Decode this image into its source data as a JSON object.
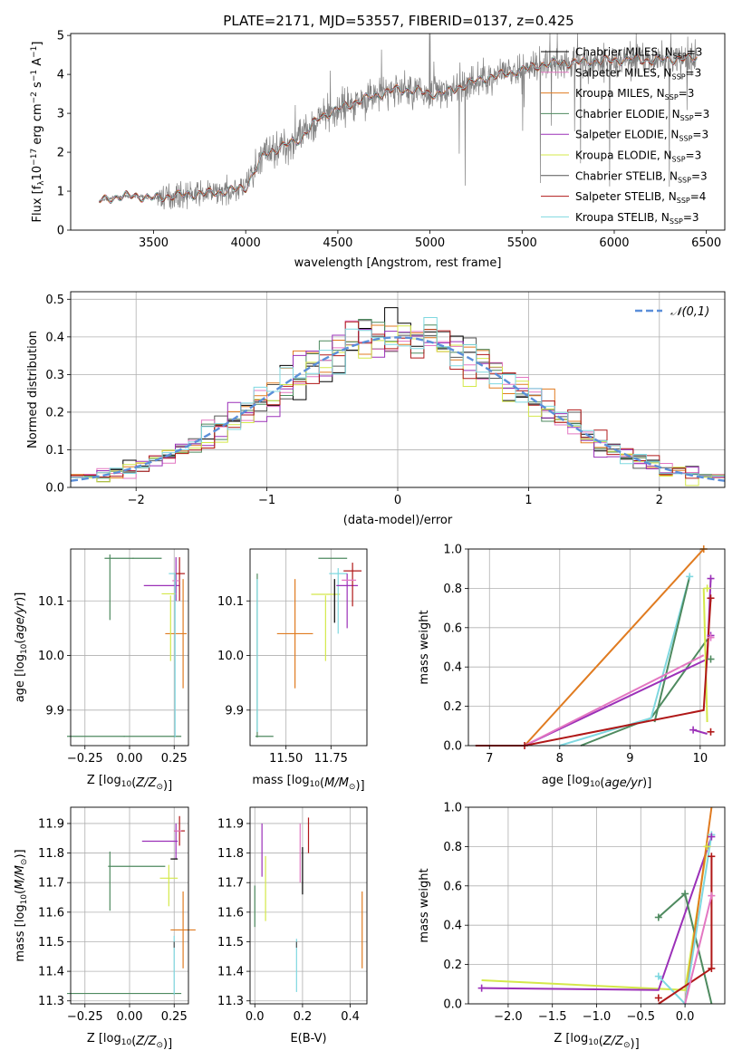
{
  "figure": {
    "title": "PLATE=2171, MJD=53557, FIBERID=0137, z=0.425"
  },
  "series": [
    {
      "name": "Chabrier MILES, N_SSP=3",
      "base": "Chabrier MILES, N",
      "sub": "SSP",
      "suf": "=3",
      "color": "#000000"
    },
    {
      "name": "Salpeter MILES, N_SSP=3",
      "base": "Salpeter MILES, N",
      "sub": "SSP",
      "suf": "=3",
      "color": "#e377c2"
    },
    {
      "name": "Kroupa MILES, N_SSP=3",
      "base": "Kroupa MILES, N",
      "sub": "SSP",
      "suf": "=3",
      "color": "#e07b20"
    },
    {
      "name": "Chabrier ELODIE, N_SSP=3",
      "base": "Chabrier ELODIE, N",
      "sub": "SSP",
      "suf": "=3",
      "color": "#4e8a5f"
    },
    {
      "name": "Salpeter ELODIE, N_SSP=3",
      "base": "Salpeter ELODIE, N",
      "sub": "SSP",
      "suf": "=3",
      "color": "#9b30b8"
    },
    {
      "name": "Kroupa ELODIE, N_SSP=3",
      "base": "Kroupa ELODIE, N",
      "sub": "SSP",
      "suf": "=3",
      "color": "#d4e84a"
    },
    {
      "name": "Chabrier STELIB, N_SSP=3",
      "base": "Chabrier STELIB, N",
      "sub": "SSP",
      "suf": "=3",
      "color": "#555555"
    },
    {
      "name": "Salpeter STELIB, N_SSP=4",
      "base": "Salpeter STELIB, N",
      "sub": "SSP",
      "suf": "=4",
      "color": "#b01818"
    },
    {
      "name": "Kroupa STELIB, N_SSP=3",
      "base": "Kroupa STELIB, N",
      "sub": "SSP",
      "suf": "=3",
      "color": "#7fd8e0"
    }
  ],
  "chart_data": [
    {
      "id": "spectrum",
      "type": "line",
      "xlabel": "wavelength [Angstrom, rest frame]",
      "ylabel": "Flux [f_λ 10^-17 erg cm^-2 s^-1 A^-1]",
      "xlim": [
        3050,
        6600
      ],
      "ylim": [
        0,
        5.05
      ],
      "xticks": [
        3500,
        4000,
        4500,
        5000,
        5500,
        6000,
        6500
      ],
      "yticks": [
        0,
        1,
        2,
        3,
        4,
        5
      ],
      "data_series_color": "#808080",
      "continuum": {
        "x": [
          3205,
          3300,
          3400,
          3500,
          3600,
          3700,
          3800,
          3900,
          4000,
          4100,
          4200,
          4300,
          4400,
          4500,
          4600,
          4700,
          4800,
          4900,
          5000,
          5100,
          5200,
          5300,
          5400,
          5500,
          5600,
          5700,
          5800,
          5900,
          6000,
          6100,
          6200,
          6300,
          6400,
          6450
        ],
        "y": [
          0.75,
          0.85,
          0.88,
          0.82,
          0.88,
          0.92,
          0.95,
          1.0,
          1.1,
          1.95,
          2.15,
          2.35,
          2.9,
          3.1,
          3.3,
          3.45,
          3.6,
          3.6,
          3.5,
          3.55,
          3.75,
          3.9,
          4.0,
          4.1,
          4.25,
          4.3,
          4.3,
          4.35,
          4.35,
          4.4,
          4.35,
          4.4,
          4.4,
          4.45
        ]
      },
      "grid": false,
      "legend": "upper right"
    },
    {
      "id": "residual_hist",
      "type": "bar",
      "xlabel": "(data-model)/error",
      "ylabel": "Normed distribution",
      "xlim": [
        -2.5,
        2.5
      ],
      "ylim": [
        0,
        0.52
      ],
      "xticks": [
        -2,
        -1,
        0,
        1,
        2
      ],
      "yticks": [
        0.0,
        0.1,
        0.2,
        0.3,
        0.4,
        0.5
      ],
      "reference": {
        "name": "𝒩(0,1)",
        "color": "#5b8fd9"
      },
      "grid": true,
      "legend": "upper right"
    },
    {
      "id": "age_vs_Z",
      "type": "scatter",
      "xlabel": "Z [log10(Z/Z⊙)]",
      "ylabel": "age [log10(age/yr)]",
      "xlim": [
        -0.33,
        0.33
      ],
      "ylim": [
        9.835,
        10.195
      ],
      "xticks": [
        -0.25,
        0.0,
        0.25
      ],
      "yticks": [
        9.9,
        10.0,
        10.1
      ],
      "points": [
        {
          "s": 3,
          "x": -0.03,
          "xerr": 0.32,
          "y": 9.852,
          "yerr": 0.001
        },
        {
          "s": 3,
          "x": 0.02,
          "xerr": 0.16,
          "y": 10.178,
          "yerr": 0.001
        },
        {
          "s": 3,
          "x": -0.11,
          "xerr": 0.0,
          "y": 10.125,
          "yerr": 0.06
        },
        {
          "s": 2,
          "x": 0.26,
          "xerr": 0.06,
          "y": 10.04,
          "yerr": 0.0
        },
        {
          "s": 2,
          "x": 0.3,
          "xerr": 0.0,
          "y": 10.04,
          "yerr": 0.1
        },
        {
          "s": 4,
          "x": 0.18,
          "xerr": 0.1,
          "y": 10.128,
          "yerr": 0.0
        },
        {
          "s": 4,
          "x": 0.26,
          "xerr": 0.0,
          "y": 10.14,
          "yerr": 0.04
        },
        {
          "s": 5,
          "x": 0.22,
          "xerr": 0.04,
          "y": 10.113,
          "yerr": 0.0
        },
        {
          "s": 5,
          "x": 0.23,
          "xerr": 0.0,
          "y": 10.05,
          "yerr": 0.06
        },
        {
          "s": 7,
          "x": 0.28,
          "xerr": 0.03,
          "y": 10.15,
          "yerr": 0.0
        },
        {
          "s": 7,
          "x": 0.28,
          "xerr": 0.0,
          "y": 10.14,
          "yerr": 0.04
        },
        {
          "s": 1,
          "x": 0.26,
          "xerr": 0.02,
          "y": 10.137,
          "yerr": 0.0
        },
        {
          "s": 8,
          "x": 0.255,
          "xerr": 0.0,
          "y": 10.0,
          "yerr": 0.15
        },
        {
          "s": 8,
          "x": 0.24,
          "xerr": 0.02,
          "y": 10.15,
          "yerr": 0.0
        }
      ],
      "grid": true
    },
    {
      "id": "age_vs_mass",
      "type": "scatter",
      "xlabel": "mass [log10(M/M⊙)]",
      "ylabel": "",
      "xlim": [
        11.3,
        11.95
      ],
      "ylim": [
        9.835,
        10.195
      ],
      "xticks": [
        11.5,
        11.75
      ],
      "yticks": [
        9.9,
        10.0,
        10.1
      ],
      "points": [
        {
          "s": 3,
          "x": 11.34,
          "xerr": 0.0,
          "y": 10.0,
          "yerr": 0.15
        },
        {
          "s": 3,
          "x": 11.38,
          "xerr": 0.05,
          "y": 9.852,
          "yerr": 0.0
        },
        {
          "s": 8,
          "x": 11.34,
          "xerr": 0.0,
          "y": 10.0,
          "yerr": 0.14
        },
        {
          "s": 2,
          "x": 11.55,
          "xerr": 0.1,
          "y": 10.04,
          "yerr": 0.0
        },
        {
          "s": 2,
          "x": 11.55,
          "xerr": 0.0,
          "y": 10.04,
          "yerr": 0.1
        },
        {
          "s": 3,
          "x": 11.76,
          "xerr": 0.08,
          "y": 10.178,
          "yerr": 0.0
        },
        {
          "s": 5,
          "x": 11.72,
          "xerr": 0.08,
          "y": 10.112,
          "yerr": 0.0
        },
        {
          "s": 5,
          "x": 11.72,
          "xerr": 0.0,
          "y": 10.05,
          "yerr": 0.06
        },
        {
          "s": 0,
          "x": 11.77,
          "xerr": 0.0,
          "y": 10.1,
          "yerr": 0.04
        },
        {
          "s": 8,
          "x": 11.79,
          "xerr": 0.05,
          "y": 10.15,
          "yerr": 0.0
        },
        {
          "s": 8,
          "x": 11.79,
          "xerr": 0.0,
          "y": 10.1,
          "yerr": 0.06
        },
        {
          "s": 4,
          "x": 11.84,
          "xerr": 0.06,
          "y": 10.128,
          "yerr": 0.0
        },
        {
          "s": 4,
          "x": 11.84,
          "xerr": 0.0,
          "y": 10.1,
          "yerr": 0.05
        },
        {
          "s": 7,
          "x": 11.87,
          "xerr": 0.05,
          "y": 10.155,
          "yerr": 0.0
        },
        {
          "s": 7,
          "x": 11.87,
          "xerr": 0.0,
          "y": 10.13,
          "yerr": 0.04
        },
        {
          "s": 1,
          "x": 11.85,
          "xerr": 0.04,
          "y": 10.138,
          "yerr": 0.0
        }
      ],
      "grid": true
    },
    {
      "id": "mass_weight_vs_age",
      "type": "line",
      "xlabel": "age [log10(age/yr)]",
      "ylabel": "mass weight",
      "xlim": [
        6.7,
        10.35
      ],
      "ylim": [
        0,
        1
      ],
      "xticks": [
        7,
        8,
        9,
        10
      ],
      "yticks": [
        0.0,
        0.2,
        0.4,
        0.6,
        0.8,
        1.0
      ],
      "lines": [
        {
          "s": 2,
          "x": [
            7.5,
            10.05
          ],
          "y": [
            0.0,
            1.0
          ]
        },
        {
          "s": 3,
          "x": [
            8.3,
            9.3,
            10.1
          ],
          "y": [
            0.0,
            0.14,
            0.54
          ]
        },
        {
          "s": 8,
          "x": [
            8.0,
            9.3,
            9.85
          ],
          "y": [
            0.0,
            0.14,
            0.86
          ]
        },
        {
          "s": 3,
          "x": [
            9.35,
            9.85
          ],
          "y": [
            0.12,
            0.86
          ]
        },
        {
          "s": 4,
          "x": [
            7.5,
            10.1,
            10.15
          ],
          "y": [
            0.0,
            0.44,
            0.85
          ]
        },
        {
          "s": 1,
          "x": [
            7.5,
            10.05
          ],
          "y": [
            0.0,
            0.46
          ]
        },
        {
          "s": 5,
          "x": [
            10.05,
            10.1
          ],
          "y": [
            0.8,
            0.12
          ]
        },
        {
          "s": 7,
          "x": [
            6.8,
            7.5,
            10.05,
            10.15
          ],
          "y": [
            0.0,
            0.0,
            0.18,
            0.75
          ]
        },
        {
          "s": 4,
          "x": [
            9.9,
            10.1
          ],
          "y": [
            0.08,
            0.06
          ]
        }
      ],
      "markers": [
        {
          "s": 2,
          "x": 10.05,
          "y": 1.0
        },
        {
          "s": 8,
          "x": 9.85,
          "y": 0.86
        },
        {
          "s": 4,
          "x": 10.15,
          "y": 0.85
        },
        {
          "s": 5,
          "x": 10.1,
          "y": 0.8
        },
        {
          "s": 7,
          "x": 10.15,
          "y": 0.75
        },
        {
          "s": 4,
          "x": 10.15,
          "y": 0.56
        },
        {
          "s": 1,
          "x": 10.15,
          "y": 0.55
        },
        {
          "s": 3,
          "x": 10.15,
          "y": 0.44
        },
        {
          "s": 7,
          "x": 10.15,
          "y": 0.07
        },
        {
          "s": 4,
          "x": 9.9,
          "y": 0.08
        },
        {
          "s": 7,
          "x": 7.5,
          "y": 0.0
        }
      ],
      "grid": true
    },
    {
      "id": "mass_vs_Z",
      "type": "scatter",
      "xlabel": "Z [log10(Z/Z⊙)]",
      "ylabel": "mass [log10(M/M⊙)]",
      "xlim": [
        -0.33,
        0.33
      ],
      "ylim": [
        11.29,
        11.955
      ],
      "xticks": [
        -0.25,
        0.0,
        0.25
      ],
      "yticks": [
        11.3,
        11.4,
        11.5,
        11.6,
        11.7,
        11.8,
        11.9
      ],
      "points": [
        {
          "s": 3,
          "x": -0.03,
          "xerr": 0.32,
          "y": 11.325,
          "yerr": 0.0
        },
        {
          "s": 8,
          "x": 0.25,
          "xerr": 0.0,
          "y": 11.42,
          "yerr": 0.1
        },
        {
          "s": 6,
          "x": 0.25,
          "xerr": 0.0,
          "y": 11.49,
          "yerr": 0.01
        },
        {
          "s": 3,
          "x": -0.11,
          "xerr": 0.0,
          "y": 11.705,
          "yerr": 0.1
        },
        {
          "s": 3,
          "x": 0.04,
          "xerr": 0.16,
          "y": 11.755,
          "yerr": 0.0
        },
        {
          "s": 2,
          "x": 0.3,
          "xerr": 0.07,
          "y": 11.54,
          "yerr": 0.13
        },
        {
          "s": 5,
          "x": 0.22,
          "xerr": 0.05,
          "y": 11.715,
          "yerr": 0.0
        },
        {
          "s": 5,
          "x": 0.22,
          "xerr": 0.0,
          "y": 11.69,
          "yerr": 0.07
        },
        {
          "s": 4,
          "x": 0.17,
          "xerr": 0.1,
          "y": 11.84,
          "yerr": 0.0
        },
        {
          "s": 4,
          "x": 0.26,
          "xerr": 0.0,
          "y": 11.84,
          "yerr": 0.06
        },
        {
          "s": 7,
          "x": 0.28,
          "xerr": 0.03,
          "y": 11.875,
          "yerr": 0.0
        },
        {
          "s": 7,
          "x": 0.28,
          "xerr": 0.0,
          "y": 11.875,
          "yerr": 0.05
        },
        {
          "s": 1,
          "x": 0.27,
          "xerr": 0.02,
          "y": 11.875,
          "yerr": 0.0
        },
        {
          "s": 0,
          "x": 0.25,
          "xerr": 0.02,
          "y": 11.78,
          "yerr": 0.0
        }
      ],
      "grid": true
    },
    {
      "id": "mass_vs_EBV",
      "type": "scatter",
      "xlabel": "E(B-V)",
      "ylabel": "",
      "xlim": [
        -0.02,
        0.47
      ],
      "ylim": [
        11.29,
        11.955
      ],
      "xticks": [
        0.0,
        0.2,
        0.4
      ],
      "yticks": [
        11.3,
        11.4,
        11.5,
        11.6,
        11.7,
        11.8,
        11.9
      ],
      "points": [
        {
          "s": 3,
          "x": 0.0,
          "xerr": 0.0,
          "y": 11.62,
          "yerr": 0.07
        },
        {
          "s": 4,
          "x": 0.03,
          "xerr": 0.0,
          "y": 11.81,
          "yerr": 0.09
        },
        {
          "s": 5,
          "x": 0.045,
          "xerr": 0.0,
          "y": 11.68,
          "yerr": 0.11
        },
        {
          "s": 8,
          "x": 0.175,
          "xerr": 0.0,
          "y": 11.42,
          "yerr": 0.09
        },
        {
          "s": 6,
          "x": 0.175,
          "xerr": 0.0,
          "y": 11.49,
          "yerr": 0.01
        },
        {
          "s": 1,
          "x": 0.19,
          "xerr": 0.0,
          "y": 11.8,
          "yerr": 0.1
        },
        {
          "s": 0,
          "x": 0.2,
          "xerr": 0.0,
          "y": 11.74,
          "yerr": 0.08
        },
        {
          "s": 7,
          "x": 0.225,
          "xerr": 0.0,
          "y": 11.86,
          "yerr": 0.06
        },
        {
          "s": 2,
          "x": 0.45,
          "xerr": 0.0,
          "y": 11.54,
          "yerr": 0.13
        }
      ],
      "grid": true
    },
    {
      "id": "mass_weight_vs_Z",
      "type": "line",
      "xlabel": "Z [log10(Z/Z⊙)]",
      "ylabel": "mass weight",
      "xlim": [
        -2.45,
        0.45
      ],
      "ylim": [
        0,
        1
      ],
      "xticks": [
        -2.0,
        -1.5,
        -1.0,
        -0.5,
        0.0
      ],
      "yticks": [
        0.0,
        0.2,
        0.4,
        0.6,
        0.8,
        1.0
      ],
      "lines": [
        {
          "s": 5,
          "x": [
            -2.3,
            0.0,
            0.25
          ],
          "y": [
            0.12,
            0.07,
            0.8
          ]
        },
        {
          "s": 4,
          "x": [
            -2.3,
            -0.3,
            0.3
          ],
          "y": [
            0.08,
            0.07,
            0.85
          ]
        },
        {
          "s": 3,
          "x": [
            -0.3,
            0.0,
            0.3
          ],
          "y": [
            0.44,
            0.56,
            0.0
          ]
        },
        {
          "s": 2,
          "x": [
            0.0,
            0.3
          ],
          "y": [
            0.0,
            1.0
          ]
        },
        {
          "s": 8,
          "x": [
            -0.3,
            0.0,
            0.3
          ],
          "y": [
            0.14,
            0.0,
            0.86
          ]
        },
        {
          "s": 7,
          "x": [
            -0.3,
            0.3,
            0.3
          ],
          "y": [
            0.0,
            0.18,
            0.75
          ]
        },
        {
          "s": 1,
          "x": [
            0.0,
            0.3
          ],
          "y": [
            0.0,
            0.55
          ]
        }
      ],
      "markers": [
        {
          "s": 8,
          "x": 0.3,
          "y": 0.86
        },
        {
          "s": 4,
          "x": 0.3,
          "y": 0.85
        },
        {
          "s": 5,
          "x": 0.25,
          "y": 0.8
        },
        {
          "s": 7,
          "x": 0.3,
          "y": 0.75
        },
        {
          "s": 3,
          "x": 0.0,
          "y": 0.56
        },
        {
          "s": 1,
          "x": 0.3,
          "y": 0.55
        },
        {
          "s": 3,
          "x": -0.3,
          "y": 0.44
        },
        {
          "s": 7,
          "x": 0.3,
          "y": 0.18
        },
        {
          "s": 8,
          "x": -0.3,
          "y": 0.14
        },
        {
          "s": 4,
          "x": -2.3,
          "y": 0.08
        },
        {
          "s": 7,
          "x": -0.3,
          "y": 0.03
        }
      ],
      "grid": true
    }
  ]
}
